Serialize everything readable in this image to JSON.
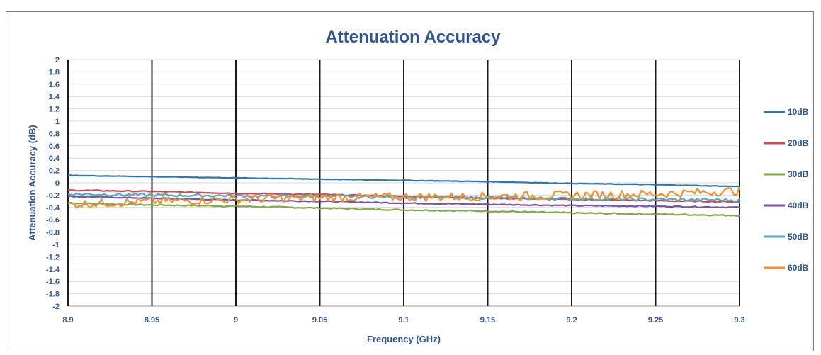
{
  "chart_data": {
    "type": "line",
    "title": "Attenuation Accuracy",
    "xlabel": "Frequency (GHz)",
    "ylabel": "Attenuation Accuracy (dB)",
    "xlim": [
      8.9,
      9.3
    ],
    "ylim": [
      -2,
      2
    ],
    "x_ticks": [
      "8.9",
      "8.95",
      "9",
      "9.05",
      "9.1",
      "9.15",
      "9.2",
      "9.25",
      "9.3"
    ],
    "y_ticks": [
      "2",
      "1.8",
      "1.6",
      "1.4",
      "1.2",
      "1",
      "0.8",
      "0.6",
      "0.4",
      "0.2",
      "0",
      "-0.2",
      "-0.4",
      "-0.6",
      "-0.8",
      "-1",
      "-1.2",
      "-1.4",
      "-1.6",
      "-1.8",
      "-2"
    ],
    "grid": true,
    "legend_position": "right",
    "x": [
      8.9,
      8.95,
      9.0,
      9.05,
      9.1,
      9.15,
      9.2,
      9.25,
      9.3
    ],
    "series": [
      {
        "name": "10dB",
        "color": "#2e75b6",
        "values": [
          0.12,
          0.1,
          0.08,
          0.06,
          0.04,
          0.02,
          -0.01,
          -0.03,
          -0.06
        ]
      },
      {
        "name": "20dB",
        "color": "#d64550",
        "values": [
          -0.12,
          -0.14,
          -0.17,
          -0.19,
          -0.22,
          -0.25,
          -0.27,
          -0.29,
          -0.31
        ]
      },
      {
        "name": "30dB",
        "color": "#7fa84a",
        "values": [
          -0.33,
          -0.36,
          -0.38,
          -0.41,
          -0.44,
          -0.46,
          -0.49,
          -0.51,
          -0.53
        ]
      },
      {
        "name": "40dB",
        "color": "#7b4fa6",
        "values": [
          -0.22,
          -0.25,
          -0.28,
          -0.3,
          -0.33,
          -0.35,
          -0.37,
          -0.38,
          -0.4
        ]
      },
      {
        "name": "50dB",
        "color": "#4bacc6",
        "values": [
          -0.18,
          -0.2,
          -0.21,
          -0.22,
          -0.23,
          -0.24,
          -0.26,
          -0.27,
          -0.28
        ]
      },
      {
        "name": "60dB",
        "color": "#f0912e",
        "values": [
          -0.35,
          -0.3,
          -0.27,
          -0.24,
          -0.23,
          -0.22,
          -0.2,
          -0.18,
          -0.13
        ]
      }
    ]
  }
}
